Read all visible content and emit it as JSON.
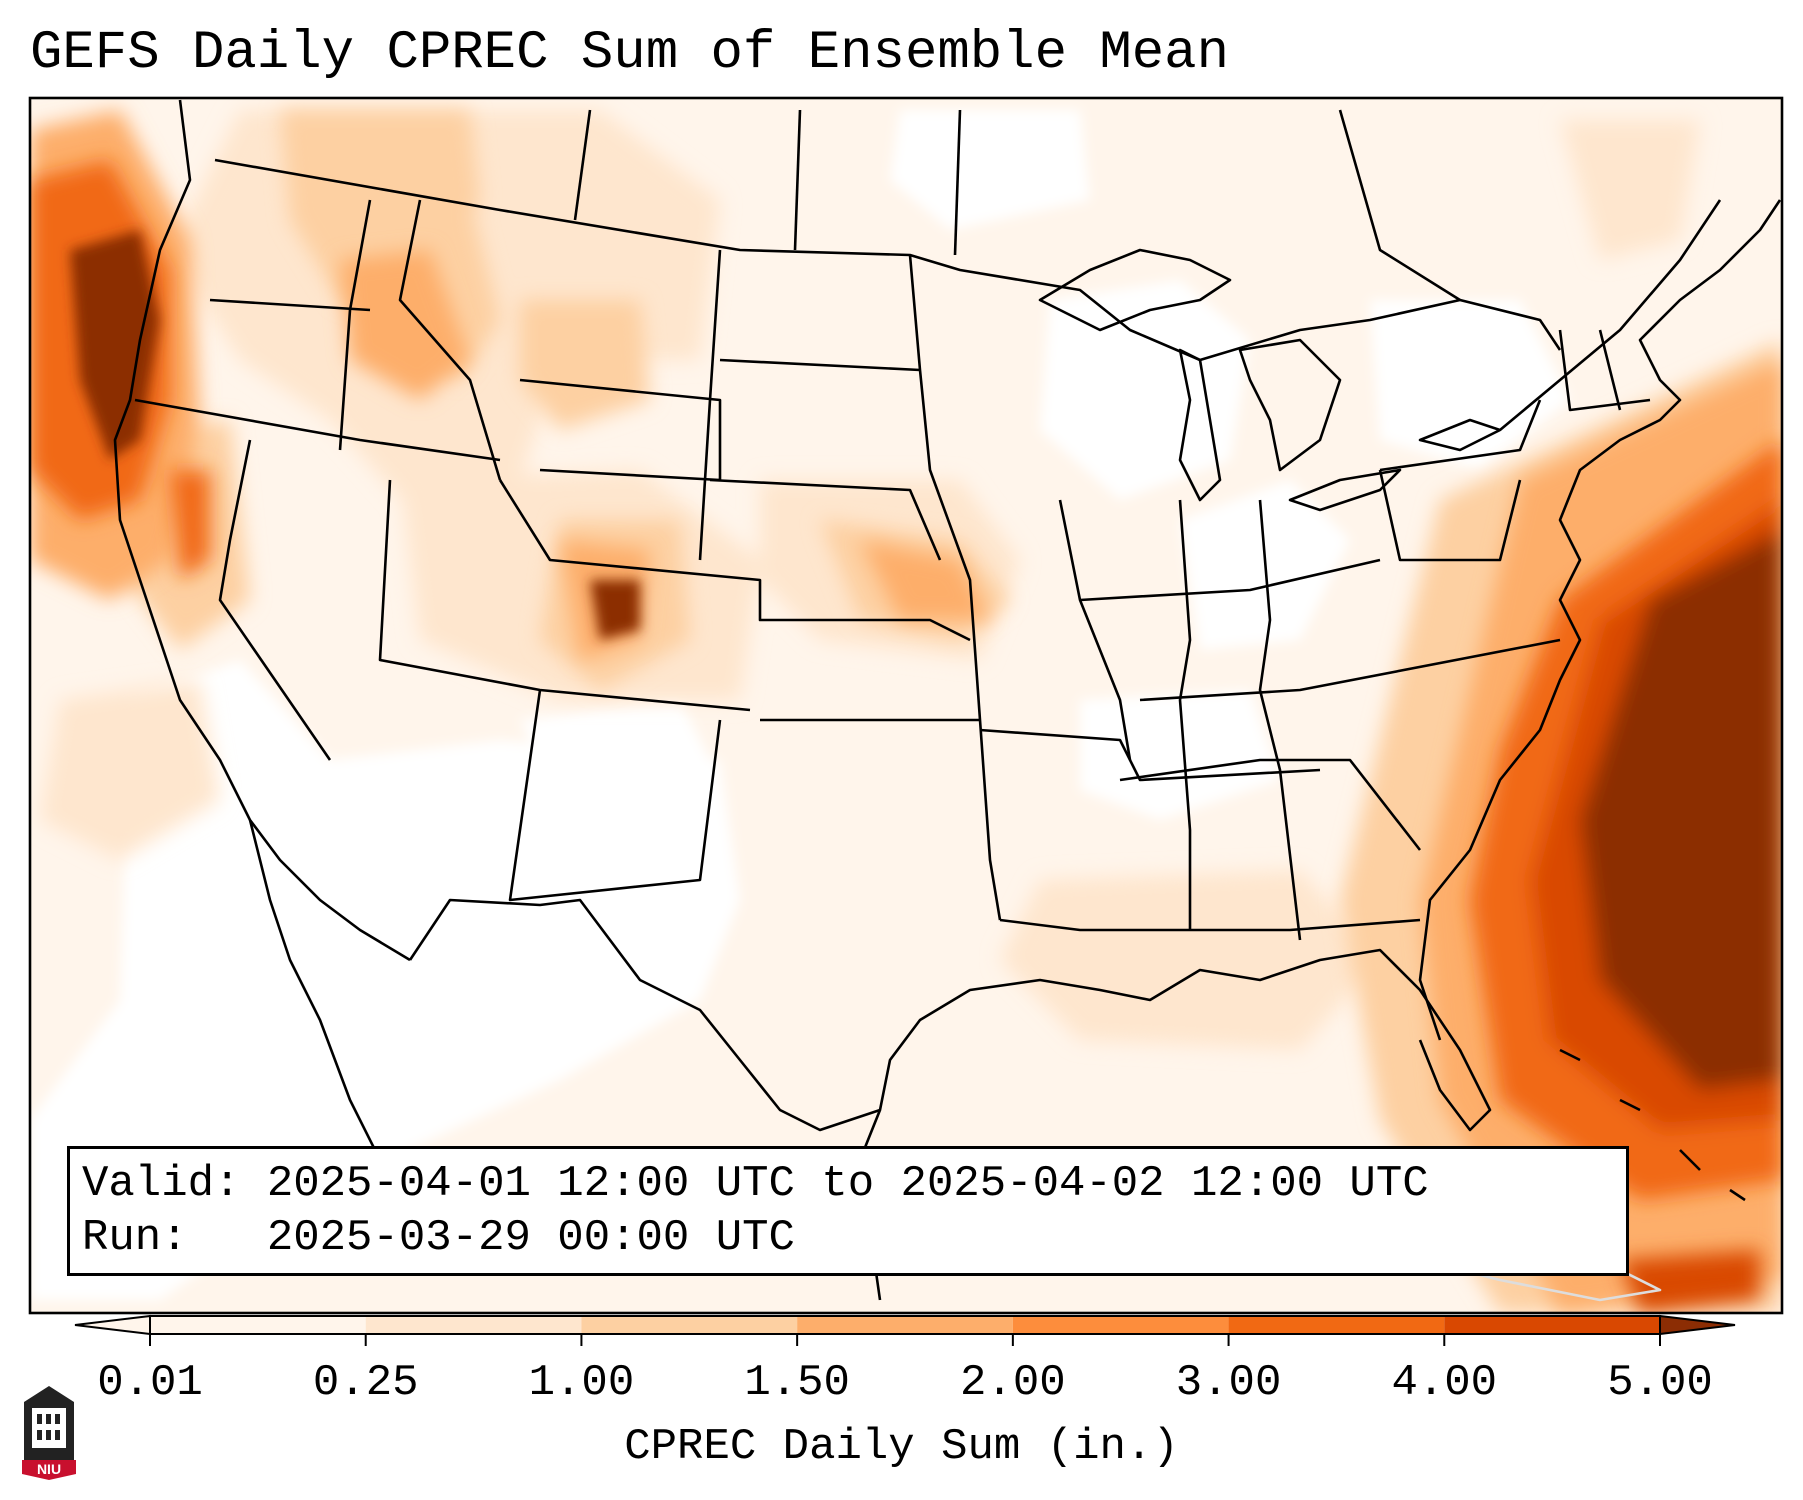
{
  "title": "GEFS Daily CPREC Sum of Ensemble Mean",
  "valid_label": "Valid:",
  "valid_text": "2025-04-01 12:00 UTC to 2025-04-02 12:00 UTC",
  "run_label": "Run:",
  "run_text": "2025-03-29 00:00 UTC",
  "colorbar": {
    "label": "CPREC Daily Sum (in.)",
    "ticks": [
      "0.01",
      "0.25",
      "1.00",
      "1.50",
      "2.00",
      "3.00",
      "4.00",
      "5.00"
    ],
    "colors": [
      "#fff5eb",
      "#fee6ce",
      "#fdd0a2",
      "#fdae6b",
      "#fd8d3c",
      "#f16913",
      "#d94801",
      "#8c2d04"
    ],
    "extend": "both"
  },
  "logo_text": "NIU",
  "colors": {
    "frame": "#000000",
    "low_precip": "#fff5eb",
    "heavy_precip": "#8c2d04",
    "logo_red": "#c8102e"
  }
}
